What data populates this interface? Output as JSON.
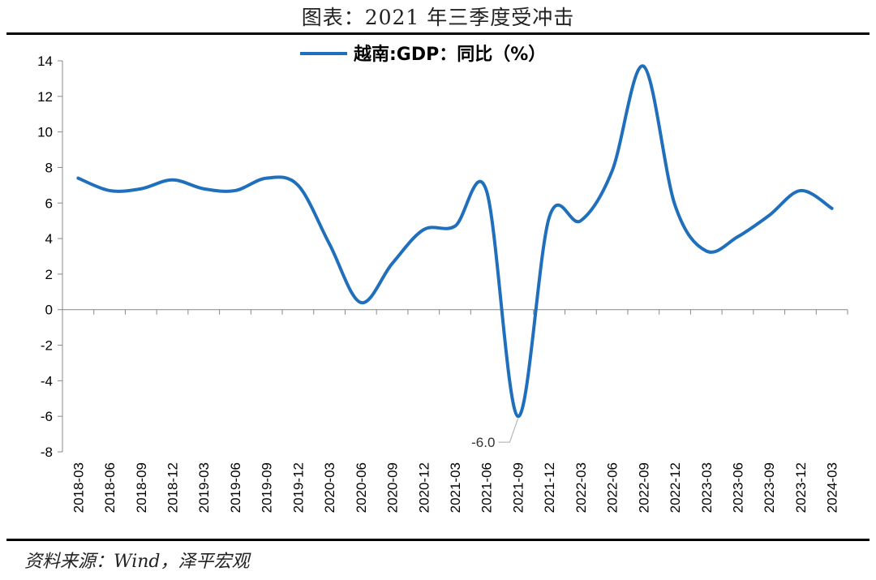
{
  "page": {
    "title": "图表：2021 年三季度受冲击",
    "source": "资料来源：Wind，泽平宏观"
  },
  "chart_data": {
    "type": "line",
    "title": "图表：2021 年三季度受冲击",
    "xlabel": "",
    "ylabel": "",
    "ylim": [
      -8,
      14
    ],
    "yticks": [
      14,
      12,
      10,
      8,
      6,
      4,
      2,
      0,
      -2,
      -4,
      -6,
      -8
    ],
    "grid": false,
    "legend_position": "top-center",
    "line_color": "#1f6fbd",
    "x": [
      "2018-03",
      "2018-06",
      "2018-09",
      "2018-12",
      "2019-03",
      "2019-06",
      "2019-09",
      "2019-12",
      "2020-03",
      "2020-06",
      "2020-09",
      "2020-12",
      "2021-03",
      "2021-06",
      "2021-09",
      "2021-12",
      "2022-03",
      "2022-06",
      "2022-09",
      "2022-12",
      "2023-03",
      "2023-06",
      "2023-09",
      "2023-12",
      "2024-03"
    ],
    "series": [
      {
        "name": "越南:GDP：同比（%）",
        "values": [
          7.4,
          6.7,
          6.8,
          7.3,
          6.8,
          6.7,
          7.4,
          7.0,
          3.7,
          0.4,
          2.6,
          4.5,
          4.7,
          6.7,
          -6.0,
          5.2,
          5.0,
          7.8,
          13.7,
          5.9,
          3.3,
          4.1,
          5.3,
          6.7,
          5.7
        ]
      }
    ],
    "annotations": [
      {
        "text": "-6.0",
        "x": "2021-09",
        "y": -6.0
      }
    ]
  }
}
